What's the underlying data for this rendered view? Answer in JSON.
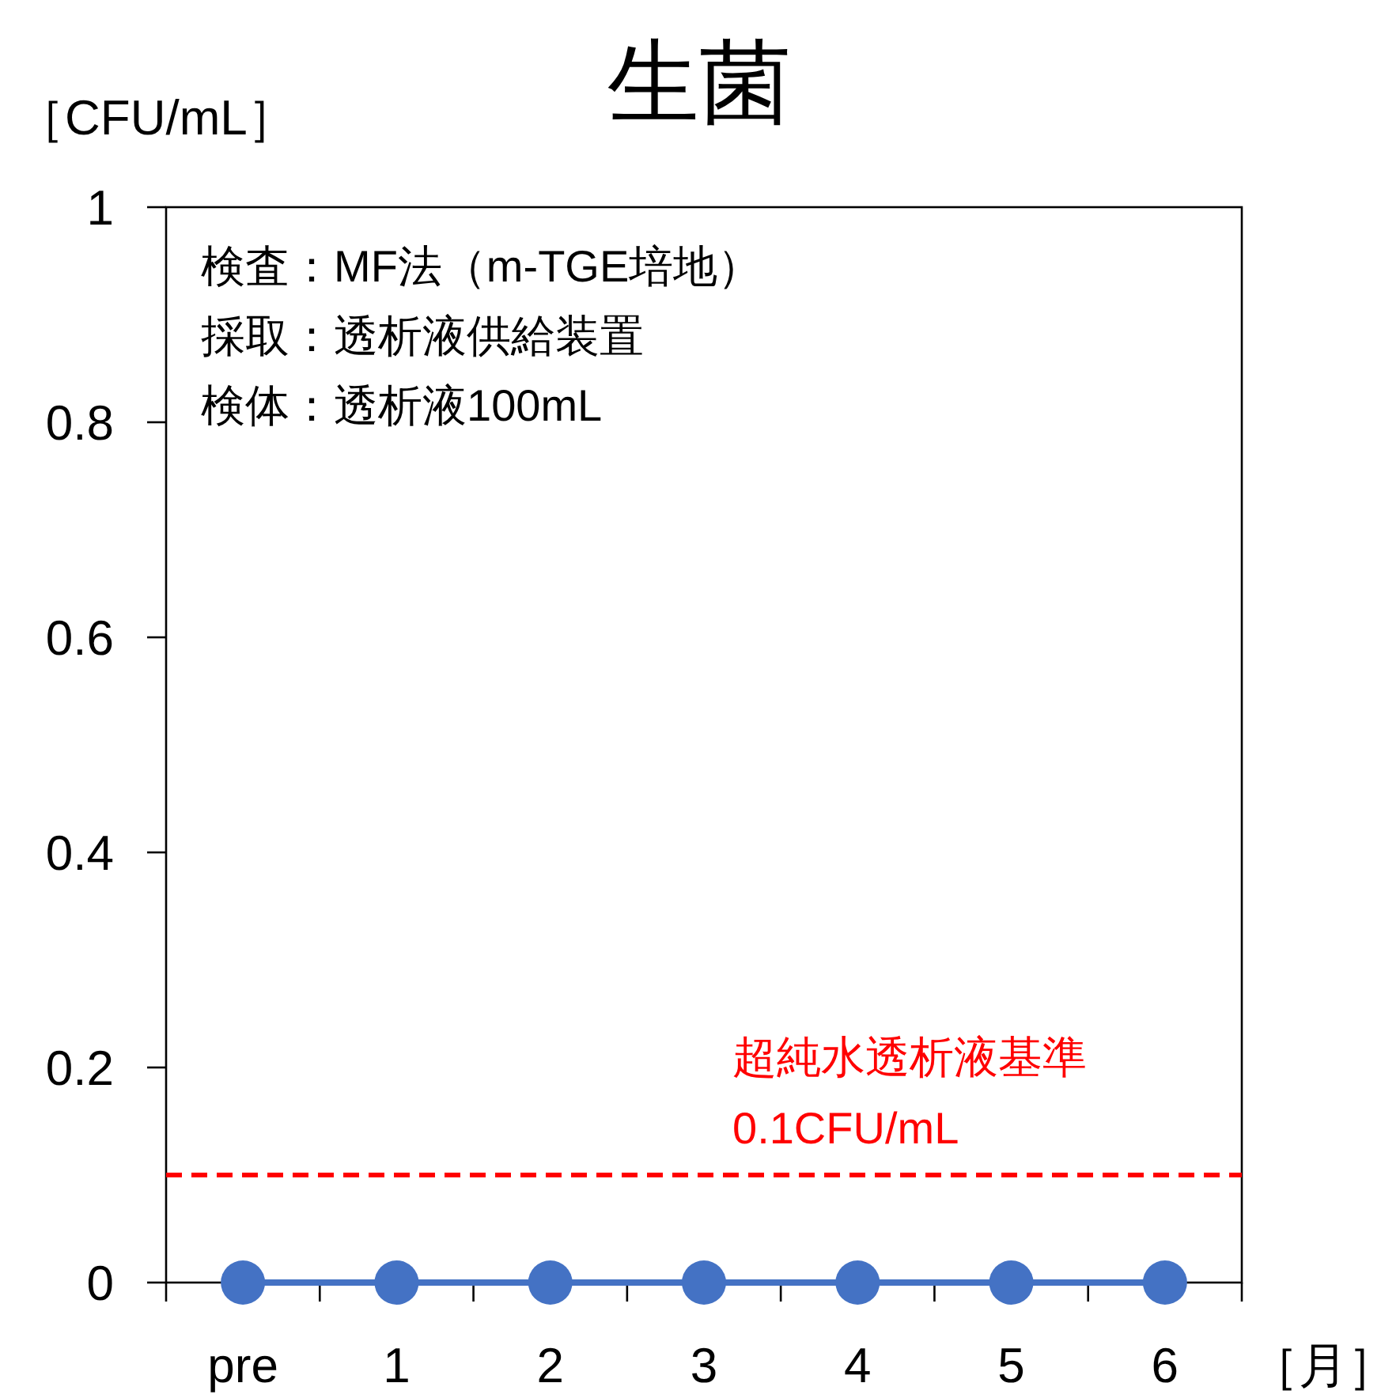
{
  "chart_data": {
    "type": "line",
    "title": "生菌",
    "ylabel": "［CFU/mL］",
    "xlabel": "［月］",
    "categories": [
      "pre",
      "1",
      "2",
      "3",
      "4",
      "5",
      "6"
    ],
    "series": [
      {
        "color": "#4472c4",
        "values": [
          0,
          0,
          0,
          0,
          0,
          0,
          0
        ]
      }
    ],
    "marker": "circle",
    "line_style": "solid",
    "ylim": [
      0,
      1
    ],
    "yticks": [
      0,
      0.2,
      0.4,
      0.6,
      0.8,
      1
    ],
    "ref_lines": [
      {
        "axis": "y",
        "value": 0.1,
        "label": "超純水透析液基準\n0.1CFU/mL",
        "color": "#ff0000",
        "line_style": "dashed"
      }
    ],
    "annotations": [
      "検査：MF法（m-TGE培地）",
      "採取：透析液供給装置",
      "検体：透析液100mL"
    ],
    "grid": false
  }
}
